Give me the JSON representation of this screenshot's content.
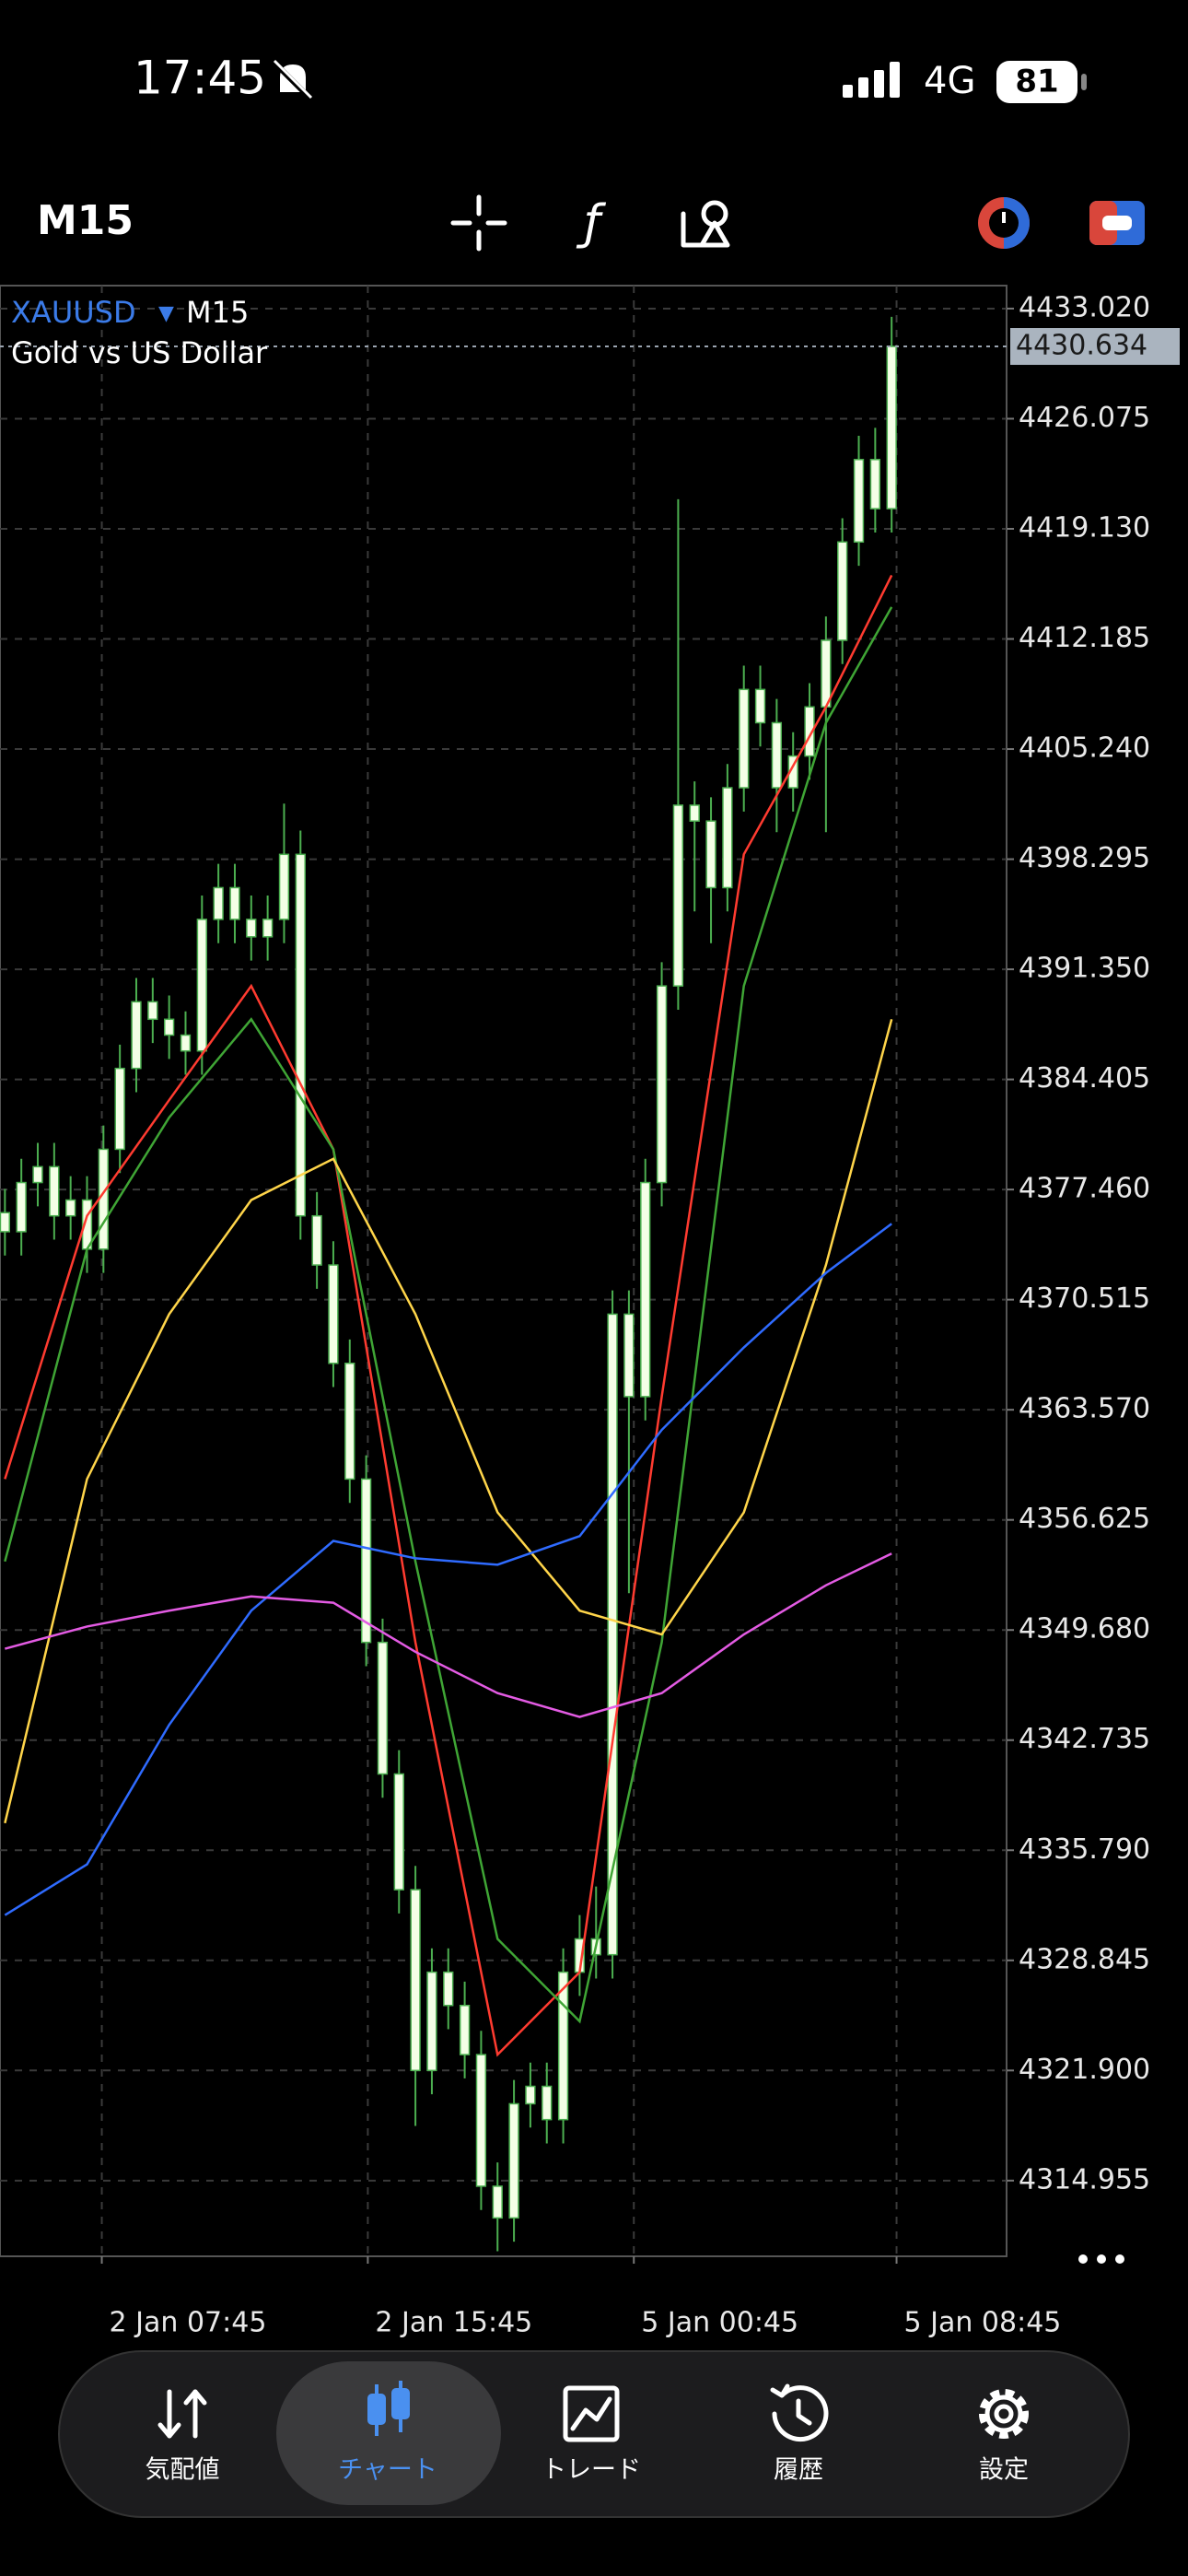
{
  "status_bar": {
    "time": "17:45",
    "network": "4G",
    "battery": "81"
  },
  "toolbar": {
    "timeframe": "M15"
  },
  "chart_data": {
    "type": "candlestick",
    "symbol": "XAUUSD",
    "timeframe": "M15",
    "description": "Gold vs US Dollar",
    "open": [
      4376.0,
      4374.8,
      4377.9,
      4378.9,
      4375.8,
      4376.8,
      4373.7,
      4380.0,
      4385.1,
      4389.3,
      4388.2,
      4387.2,
      4386.2,
      4394.5,
      4396.5,
      4394.5,
      4393.4,
      4394.5,
      4398.6,
      4375.8,
      4372.7,
      4366.5,
      4359.2,
      4348.9,
      4340.6,
      4333.3,
      4321.9,
      4328.1,
      4326.0,
      4322.9,
      4314.6,
      4312.6,
      4319.8,
      4320.9,
      4318.8,
      4328.1,
      4330.2,
      4329.2,
      4369.6,
      4364.4,
      4377.9,
      4390.3,
      4401.7,
      4400.7,
      4396.5,
      4402.8,
      4409.0,
      4406.9,
      4402.8,
      4404.8,
      4407.9,
      4412.1,
      4418.3,
      4423.5,
      4420.4
    ],
    "high": [
      4377.5,
      4379.4,
      4380.4,
      4380.4,
      4378.3,
      4378.3,
      4381.5,
      4386.6,
      4390.8,
      4390.8,
      4389.7,
      4388.7,
      4396.0,
      4398.0,
      4398.0,
      4396.0,
      4396.0,
      4401.8,
      4400.1,
      4377.3,
      4374.2,
      4368.0,
      4360.7,
      4350.4,
      4342.1,
      4334.8,
      4329.6,
      4329.6,
      4327.5,
      4324.4,
      4316.1,
      4321.3,
      4322.4,
      4322.4,
      4329.6,
      4331.7,
      4333.5,
      4371.1,
      4371.1,
      4379.4,
      4391.8,
      4421.0,
      4403.2,
      4402.2,
      4404.3,
      4410.5,
      4410.5,
      4408.4,
      4406.3,
      4409.4,
      4413.6,
      4419.8,
      4425.0,
      4425.5,
      4432.5
    ],
    "low": [
      4373.3,
      4373.3,
      4376.4,
      4374.3,
      4374.3,
      4372.2,
      4372.2,
      4378.5,
      4383.6,
      4386.7,
      4385.7,
      4384.7,
      4384.7,
      4393.0,
      4393.0,
      4391.9,
      4391.9,
      4393.0,
      4374.3,
      4371.2,
      4365.0,
      4357.7,
      4347.4,
      4339.1,
      4331.8,
      4318.4,
      4320.4,
      4324.5,
      4321.4,
      4313.1,
      4310.5,
      4311.1,
      4318.3,
      4317.3,
      4317.3,
      4326.6,
      4327.7,
      4327.7,
      4352.0,
      4362.9,
      4376.4,
      4388.8,
      4395.0,
      4393.0,
      4395.0,
      4401.3,
      4405.4,
      4400.0,
      4401.3,
      4403.3,
      4400.0,
      4410.6,
      4416.8,
      4418.9,
      4418.9
    ],
    "close": [
      4374.8,
      4377.9,
      4378.9,
      4375.8,
      4376.8,
      4373.7,
      4380.0,
      4385.1,
      4389.3,
      4388.2,
      4387.2,
      4386.2,
      4394.5,
      4396.5,
      4394.5,
      4393.4,
      4394.5,
      4398.6,
      4375.8,
      4372.7,
      4366.5,
      4359.2,
      4348.9,
      4340.6,
      4333.3,
      4321.9,
      4328.1,
      4326.0,
      4322.9,
      4314.6,
      4312.6,
      4319.8,
      4320.9,
      4318.8,
      4328.1,
      4330.2,
      4329.2,
      4369.6,
      4364.4,
      4377.9,
      4390.3,
      4401.7,
      4400.7,
      4396.5,
      4402.8,
      4409.0,
      4406.9,
      4402.8,
      4404.8,
      4407.9,
      4412.1,
      4418.3,
      4423.5,
      4420.4,
      4430.634
    ],
    "up_color": "#4caf50",
    "body_color": "#f4ffe6",
    "indicators": {
      "x": [
        0,
        5,
        10,
        15,
        20,
        25,
        30,
        35,
        40,
        45,
        50,
        54
      ],
      "series": [
        {
          "color": "#ff3b30",
          "values": [
            4359.2,
            4375.8,
            4383.1,
            4390.3,
            4380.0,
            4348.9,
            4322.9,
            4328.1,
            4364.4,
            4398.6,
            4407.9,
            4416.2
          ]
        },
        {
          "color": "#3fa535",
          "values": [
            4354.0,
            4373.7,
            4382.0,
            4388.2,
            4380.0,
            4354.0,
            4330.2,
            4325.0,
            4348.9,
            4390.3,
            4406.9,
            4414.2
          ]
        },
        {
          "color": "#ffd54a",
          "values": [
            4337.5,
            4359.2,
            4369.6,
            4376.8,
            4379.4,
            4369.6,
            4357.1,
            4350.9,
            4349.4,
            4357.1,
            4372.7,
            4388.2
          ]
        },
        {
          "color": "#2f6bff",
          "values": [
            4331.7,
            4334.9,
            4343.7,
            4350.9,
            4355.3,
            4354.2,
            4353.8,
            4355.6,
            4362.3,
            4367.5,
            4372.2,
            4375.3
          ]
        },
        {
          "color": "#e35be3",
          "values": [
            4348.5,
            4349.9,
            4350.9,
            4351.8,
            4351.4,
            4348.3,
            4345.7,
            4344.2,
            4345.7,
            4349.4,
            4352.5,
            4354.5
          ]
        }
      ]
    },
    "current_price": 4430.634,
    "xlim": [
      -0.3,
      61
    ],
    "xticks": [
      {
        "value": 5.9,
        "label": "2 Jan 07:45"
      },
      {
        "value": 22.1,
        "label": "2 Jan 15:45"
      },
      {
        "value": 38.3,
        "label": "5 Jan 00:45"
      },
      {
        "value": 54.3,
        "label": "5 Jan 08:45"
      }
    ],
    "ylim": [
      4310.18,
      4434.47
    ],
    "yticks": [
      {
        "value": 4433.02,
        "label": "4433.020"
      },
      4426.075,
      {
        "value": 4419.13,
        "label": "4419.130"
      },
      4412.185,
      {
        "value": 4405.24,
        "label": "4405.240"
      },
      4398.295,
      {
        "value": 4391.35,
        "label": "4391.350"
      },
      4384.405,
      {
        "value": 4377.46,
        "label": "4377.460"
      },
      4370.515,
      {
        "value": 4363.57,
        "label": "4363.570"
      },
      4356.625,
      {
        "value": 4349.68,
        "label": "4349.680"
      },
      4342.735,
      {
        "value": 4335.79,
        "label": "4335.790"
      },
      4328.845,
      {
        "value": 4321.9,
        "label": "4321.900"
      },
      4314.955
    ],
    "grid": true
  },
  "nav": [
    "気配値",
    "チャート",
    "トレード",
    "履歴",
    "設定"
  ]
}
